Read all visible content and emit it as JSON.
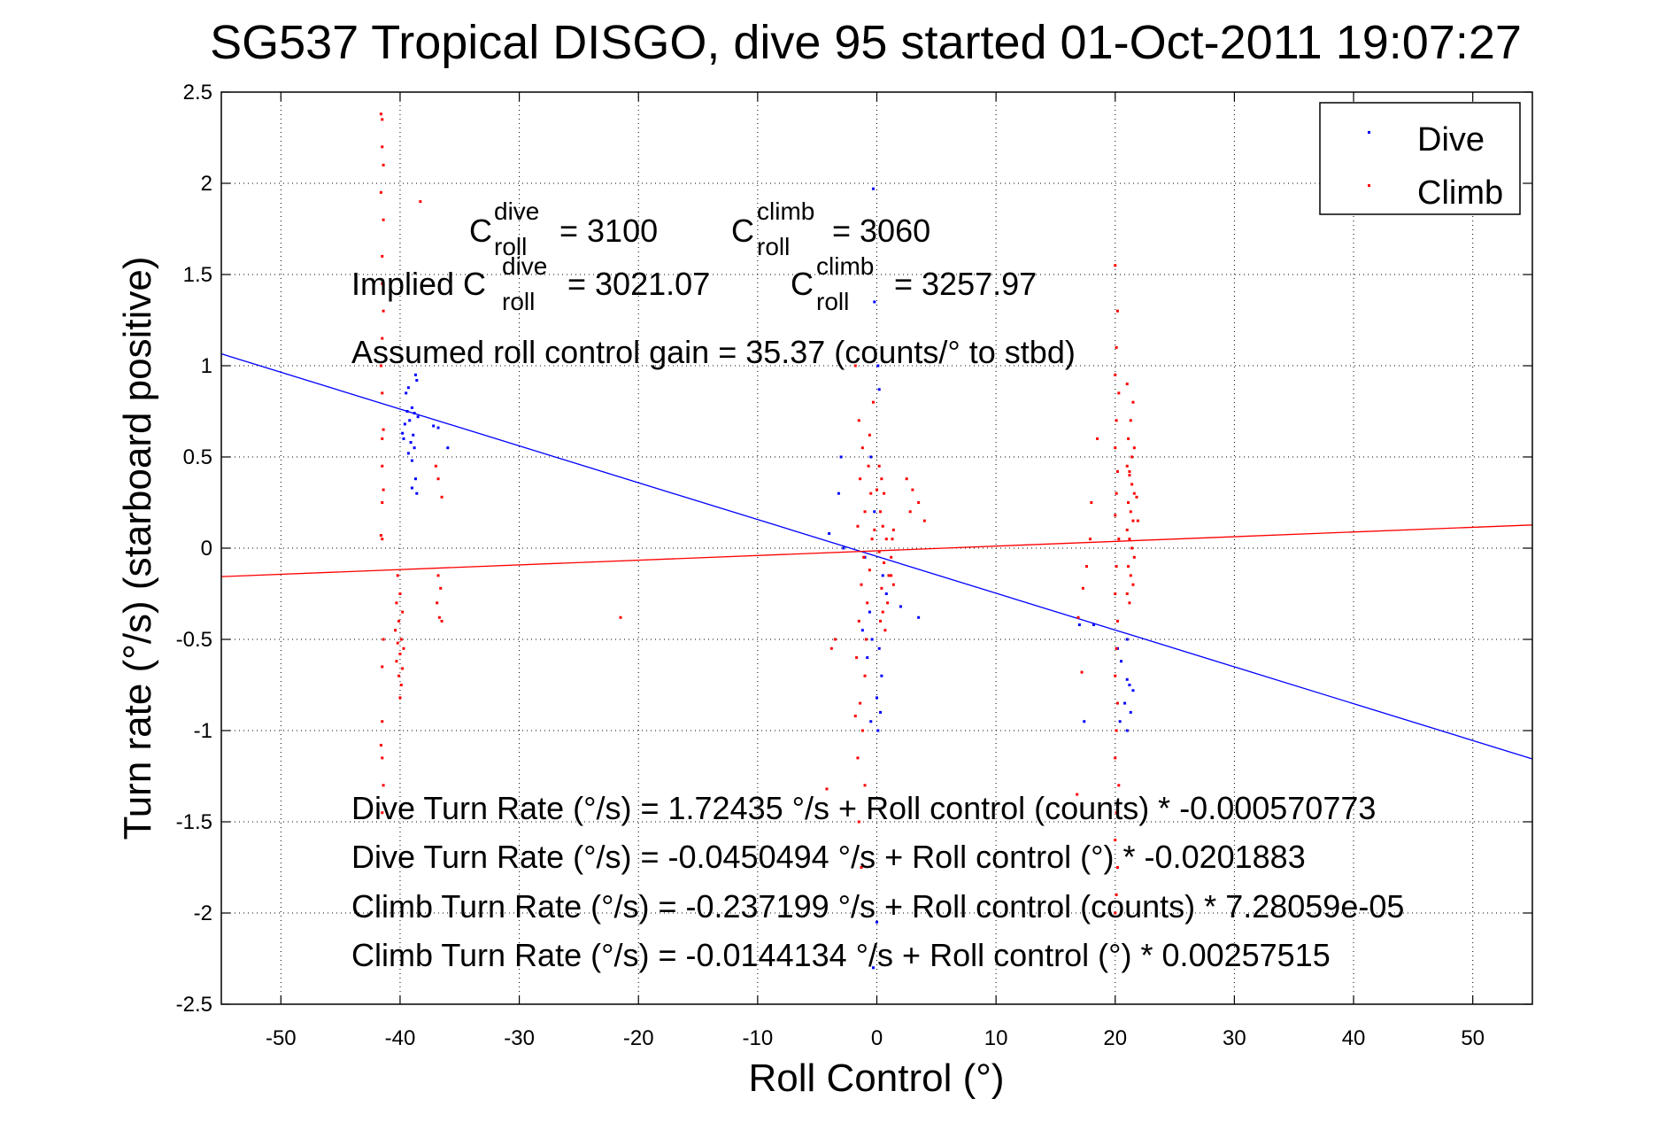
{
  "chart_data": {
    "type": "scatter",
    "title": "SG537 Tropical DISGO, dive 95 started 01-Oct-2011 19:07:27",
    "xlabel": "Roll Control (°)",
    "ylabel": "Turn rate (°/s)  (starboard positive)",
    "xlim": [
      -55,
      55
    ],
    "ylim": [
      -2.5,
      2.5
    ],
    "xticks": [
      -50,
      -40,
      -30,
      -20,
      -10,
      0,
      10,
      20,
      30,
      40,
      50
    ],
    "yticks": [
      -2.5,
      -2,
      -1.5,
      -1,
      -0.5,
      0,
      0.5,
      1,
      1.5,
      2,
      2.5
    ],
    "xtick_labels": [
      "-50",
      "-40",
      "-30",
      "-20",
      "-10",
      "0",
      "10",
      "20",
      "30",
      "40",
      "50"
    ],
    "ytick_labels": [
      "-2.5",
      "-2",
      "-1.5",
      "-1",
      "-0.5",
      "0",
      "0.5",
      "1",
      "1.5",
      "2",
      "2.5"
    ],
    "grid": true,
    "legend": {
      "position": "top-right",
      "entries": [
        "Dive",
        "Climb"
      ]
    },
    "colors": {
      "dive": "#0000ff",
      "climb": "#ff0000"
    },
    "annotations": {
      "c_roll_dive_label": "C",
      "c_roll_dive_sup": "dive",
      "c_roll_dive_sub": "roll",
      "c_roll_dive_value": "= 3100",
      "c_roll_climb_label": "C",
      "c_roll_climb_sup": "climb",
      "c_roll_climb_sub": "roll",
      "c_roll_climb_value": "= 3060",
      "implied_prefix": "Implied C",
      "implied_dive_sup": "dive",
      "implied_dive_sub": "roll",
      "implied_dive_value": "= 3021.07",
      "implied_climb_label": "C",
      "implied_climb_sup": "climb",
      "implied_climb_sub": "roll",
      "implied_climb_value": "= 3257.97",
      "gain": "Assumed roll control gain = 35.37 (counts/° to stbd)",
      "fit1": "Dive Turn Rate (°/s) = 1.72435 °/s + Roll control (counts) * -0.000570773",
      "fit2": "Dive Turn Rate (°/s) = -0.0450494 °/s + Roll control (°) * -0.0201883",
      "fit3": "Climb Turn Rate (°/s) = -0.237199 °/s + Roll control (counts) * 7.28059e-05",
      "fit4": "Climb Turn Rate (°/s) = -0.0144134 °/s + Roll control (°) * 0.00257515"
    },
    "fits": [
      {
        "name": "Dive",
        "intercept": -0.0450494,
        "slope": -0.0201883
      },
      {
        "name": "Climb",
        "intercept": -0.0144134,
        "slope": 0.00257515
      }
    ],
    "series": [
      {
        "name": "Dive",
        "points": [
          [
            -39.5,
            0.85
          ],
          [
            -39.3,
            0.88
          ],
          [
            -38.7,
            0.95
          ],
          [
            -38.6,
            0.92
          ],
          [
            -39.0,
            0.77
          ],
          [
            -39.4,
            0.75
          ],
          [
            -38.8,
            0.74
          ],
          [
            -39.2,
            0.7
          ],
          [
            -39.6,
            0.68
          ],
          [
            -38.9,
            0.62
          ],
          [
            -39.1,
            0.58
          ],
          [
            -39.7,
            0.6
          ],
          [
            -38.8,
            0.55
          ],
          [
            -39.3,
            0.52
          ],
          [
            -39.0,
            0.48
          ],
          [
            -38.7,
            0.38
          ],
          [
            -39.0,
            0.33
          ],
          [
            -38.6,
            0.3
          ],
          [
            -37.2,
            0.67
          ],
          [
            -36.8,
            0.66
          ],
          [
            -36.0,
            0.55
          ],
          [
            -38.5,
            0.72
          ],
          [
            -39.8,
            0.63
          ],
          [
            -0.3,
            1.97
          ],
          [
            -0.2,
            1.35
          ],
          [
            0.1,
            1.0
          ],
          [
            0.2,
            0.87
          ],
          [
            -0.5,
            0.5
          ],
          [
            -3.0,
            0.5
          ],
          [
            -3.2,
            0.3
          ],
          [
            -4.0,
            0.08
          ],
          [
            -2.8,
            0.0
          ],
          [
            -1.0,
            -0.05
          ],
          [
            -0.6,
            -0.35
          ],
          [
            -1.2,
            -0.45
          ],
          [
            -0.4,
            -0.5
          ],
          [
            0.2,
            -0.55
          ],
          [
            -0.8,
            -0.6
          ],
          [
            0.4,
            -0.7
          ],
          [
            0.0,
            -0.82
          ],
          [
            0.3,
            -0.9
          ],
          [
            -0.5,
            -0.95
          ],
          [
            0.1,
            -1.0
          ],
          [
            0.0,
            -2.05
          ],
          [
            -0.3,
            -2.3
          ],
          [
            2.0,
            -0.32
          ],
          [
            3.5,
            -0.38
          ],
          [
            0.8,
            -0.25
          ],
          [
            0.5,
            -0.15
          ],
          [
            -0.2,
            0.2
          ],
          [
            17.0,
            -0.42
          ],
          [
            18.2,
            -0.42
          ],
          [
            17.4,
            -0.95
          ],
          [
            21.0,
            -0.5
          ],
          [
            20.5,
            -0.62
          ],
          [
            21.0,
            -0.72
          ],
          [
            21.2,
            -0.75
          ],
          [
            21.5,
            -0.78
          ],
          [
            20.8,
            -0.85
          ],
          [
            21.3,
            -0.9
          ],
          [
            20.4,
            -0.95
          ],
          [
            21.0,
            -1.0
          ],
          [
            20.2,
            -0.55
          ]
        ]
      },
      {
        "name": "Climb",
        "points": [
          [
            -41.6,
            2.38
          ],
          [
            -41.5,
            2.35
          ],
          [
            -41.5,
            2.2
          ],
          [
            -41.4,
            2.1
          ],
          [
            -41.6,
            1.95
          ],
          [
            -41.4,
            1.8
          ],
          [
            -41.5,
            1.6
          ],
          [
            -41.5,
            1.45
          ],
          [
            -41.4,
            1.3
          ],
          [
            -41.5,
            1.15
          ],
          [
            -41.6,
            1.0
          ],
          [
            -41.5,
            0.85
          ],
          [
            -41.4,
            0.65
          ],
          [
            -41.5,
            0.6
          ],
          [
            -41.5,
            0.45
          ],
          [
            -41.4,
            0.32
          ],
          [
            -41.5,
            0.25
          ],
          [
            -41.6,
            0.07
          ],
          [
            -41.5,
            0.05
          ],
          [
            -41.4,
            -0.5
          ],
          [
            -41.5,
            -0.65
          ],
          [
            -41.5,
            -0.95
          ],
          [
            -41.6,
            -1.08
          ],
          [
            -41.5,
            -1.15
          ],
          [
            -41.4,
            -1.3
          ],
          [
            -41.5,
            -1.45
          ],
          [
            -38.3,
            1.9
          ],
          [
            -40.2,
            -0.15
          ],
          [
            -40.0,
            -0.25
          ],
          [
            -40.3,
            -0.3
          ],
          [
            -39.8,
            -0.35
          ],
          [
            -40.1,
            -0.4
          ],
          [
            -40.4,
            -0.45
          ],
          [
            -39.9,
            -0.5
          ],
          [
            -40.2,
            -0.52
          ],
          [
            -39.7,
            -0.55
          ],
          [
            -40.0,
            -0.58
          ],
          [
            -40.3,
            -0.62
          ],
          [
            -39.8,
            -0.66
          ],
          [
            -40.1,
            -0.7
          ],
          [
            -39.9,
            -0.75
          ],
          [
            -40.0,
            -0.82
          ],
          [
            -37.0,
            0.45
          ],
          [
            -36.8,
            0.38
          ],
          [
            -36.5,
            0.28
          ],
          [
            -36.8,
            -0.15
          ],
          [
            -36.6,
            -0.22
          ],
          [
            -36.9,
            -0.3
          ],
          [
            -36.7,
            -0.38
          ],
          [
            -36.5,
            -0.4
          ],
          [
            -21.5,
            -0.38
          ],
          [
            -1.8,
            1.0
          ],
          [
            -1.5,
            0.7
          ],
          [
            -1.2,
            0.55
          ],
          [
            -0.7,
            0.45
          ],
          [
            -1.4,
            0.38
          ],
          [
            -0.5,
            0.3
          ],
          [
            -1.0,
            0.2
          ],
          [
            -1.6,
            0.12
          ],
          [
            -0.4,
            0.05
          ],
          [
            -1.1,
            -0.05
          ],
          [
            -0.6,
            -0.12
          ],
          [
            -1.3,
            -0.2
          ],
          [
            -0.8,
            -0.3
          ],
          [
            -1.5,
            -0.4
          ],
          [
            -0.9,
            -0.5
          ],
          [
            -1.7,
            -0.6
          ],
          [
            -1.0,
            -0.7
          ],
          [
            -1.4,
            -0.85
          ],
          [
            -1.2,
            -1.0
          ],
          [
            -1.6,
            -1.15
          ],
          [
            -1.0,
            -1.3
          ],
          [
            -1.5,
            -1.5
          ],
          [
            -1.3,
            -1.75
          ],
          [
            0.2,
            0.45
          ],
          [
            0.4,
            0.38
          ],
          [
            0.6,
            0.3
          ],
          [
            0.3,
            0.2
          ],
          [
            0.5,
            0.12
          ],
          [
            0.8,
            0.05
          ],
          [
            0.2,
            -0.02
          ],
          [
            0.6,
            -0.08
          ],
          [
            1.0,
            -0.15
          ],
          [
            0.4,
            -0.22
          ],
          [
            0.9,
            -0.3
          ],
          [
            0.3,
            -0.4
          ],
          [
            0.7,
            -0.45
          ],
          [
            1.2,
            -0.05
          ],
          [
            1.3,
            0.05
          ],
          [
            1.4,
            0.1
          ],
          [
            1.2,
            -0.15
          ],
          [
            1.4,
            -0.2
          ],
          [
            2.5,
            0.38
          ],
          [
            3.0,
            0.32
          ],
          [
            3.5,
            0.25
          ],
          [
            4.0,
            0.15
          ],
          [
            2.8,
            0.2
          ],
          [
            -3.5,
            -0.5
          ],
          [
            -3.8,
            -0.55
          ],
          [
            -4.2,
            -1.32
          ],
          [
            -1.8,
            -0.92
          ],
          [
            0.0,
            0.32
          ],
          [
            -0.2,
            0.1
          ],
          [
            0.5,
            -0.35
          ],
          [
            -0.3,
            0.8
          ],
          [
            -0.6,
            0.62
          ],
          [
            20.0,
            1.55
          ],
          [
            20.2,
            1.3
          ],
          [
            20.1,
            1.1
          ],
          [
            20.0,
            0.95
          ],
          [
            20.3,
            0.85
          ],
          [
            20.1,
            0.7
          ],
          [
            20.0,
            0.55
          ],
          [
            20.2,
            0.42
          ],
          [
            20.1,
            0.3
          ],
          [
            20.0,
            0.18
          ],
          [
            20.3,
            0.05
          ],
          [
            20.1,
            -0.1
          ],
          [
            20.0,
            -0.25
          ],
          [
            20.2,
            -0.4
          ],
          [
            20.1,
            -0.55
          ],
          [
            20.0,
            -0.7
          ],
          [
            20.2,
            -0.85
          ],
          [
            20.1,
            -1.0
          ],
          [
            20.0,
            -1.15
          ],
          [
            20.3,
            -1.3
          ],
          [
            20.1,
            -1.45
          ],
          [
            20.0,
            -1.6
          ],
          [
            20.2,
            -1.75
          ],
          [
            20.1,
            -1.9
          ],
          [
            20.0,
            -2.0
          ],
          [
            21.0,
            0.45
          ],
          [
            21.2,
            0.4
          ],
          [
            21.4,
            0.35
          ],
          [
            21.6,
            0.3
          ],
          [
            21.1,
            0.25
          ],
          [
            21.3,
            0.2
          ],
          [
            21.5,
            0.15
          ],
          [
            21.0,
            0.1
          ],
          [
            21.2,
            0.05
          ],
          [
            21.4,
            0.0
          ],
          [
            21.6,
            -0.05
          ],
          [
            21.1,
            -0.1
          ],
          [
            21.3,
            -0.15
          ],
          [
            21.5,
            -0.2
          ],
          [
            21.0,
            -0.25
          ],
          [
            21.2,
            -0.3
          ],
          [
            21.4,
            0.5
          ],
          [
            21.6,
            0.55
          ],
          [
            21.1,
            0.6
          ],
          [
            21.3,
            0.7
          ],
          [
            21.5,
            0.8
          ],
          [
            21.0,
            0.9
          ],
          [
            21.2,
            0.42
          ],
          [
            21.8,
            0.28
          ],
          [
            21.9,
            0.15
          ],
          [
            18.0,
            0.25
          ],
          [
            17.9,
            0.05
          ],
          [
            17.6,
            -0.1
          ],
          [
            17.3,
            -0.22
          ],
          [
            16.9,
            -0.38
          ],
          [
            17.2,
            -0.68
          ],
          [
            16.8,
            -1.35
          ],
          [
            18.5,
            0.6
          ]
        ]
      }
    ]
  }
}
